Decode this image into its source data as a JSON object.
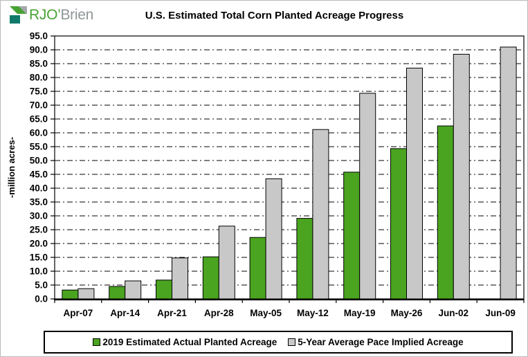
{
  "logo": {
    "name_primary": "RJO’",
    "name_secondary": "Brien",
    "icon": "rjobrien-logo-icon",
    "colors": {
      "green": "#47a234",
      "teal": "#0f7a6b",
      "gray": "#a3a9ac"
    }
  },
  "chart_data": {
    "type": "bar",
    "title": "U.S. Estimated Total Corn Planted Acreage Progress",
    "xlabel": "",
    "ylabel": "-million acres-",
    "ylim": [
      0,
      95
    ],
    "ytick_step": 5,
    "yticks": [
      "0.0",
      "5.0",
      "10.0",
      "15.0",
      "20.0",
      "25.0",
      "30.0",
      "35.0",
      "40.0",
      "45.0",
      "50.0",
      "55.0",
      "60.0",
      "65.0",
      "70.0",
      "75.0",
      "80.0",
      "85.0",
      "90.0",
      "95.0"
    ],
    "grid": "horizontal dash-dot, on",
    "legend_position": "bottom",
    "categories": [
      "Apr-07",
      "Apr-14",
      "Apr-21",
      "Apr-28",
      "May-05",
      "May-12",
      "May-19",
      "May-26",
      "Jun-02",
      "Jun-09"
    ],
    "series": [
      {
        "name": "2019 Estimated Actual Planted Acreage",
        "color": "#4aa41f",
        "values": [
          3.2,
          4.5,
          6.8,
          15.2,
          22.2,
          29.1,
          45.8,
          54.3,
          62.5,
          null
        ]
      },
      {
        "name": "5-Year Average Pace Implied Acreage",
        "color": "#c8c8c8",
        "values": [
          3.7,
          6.5,
          14.8,
          26.3,
          43.4,
          61.2,
          74.3,
          83.4,
          88.4,
          91.0
        ]
      }
    ]
  }
}
